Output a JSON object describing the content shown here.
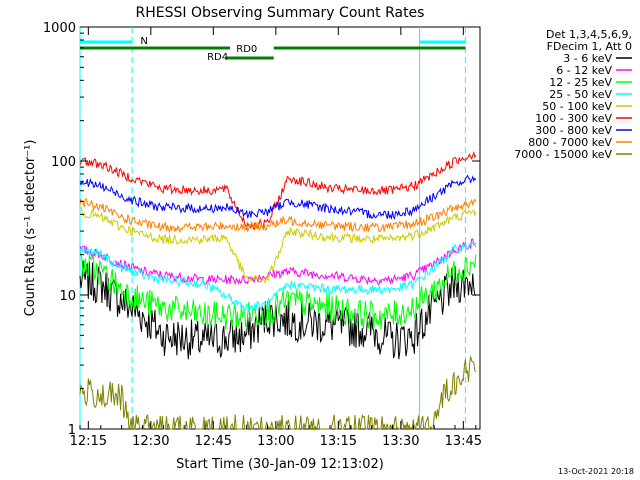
{
  "chart_data": {
    "type": "line",
    "title": "RHESSI Observing Summary Count Rates",
    "xlabel": "Start Time (30-Jan-09 12:13:02)",
    "ylabel": "Count Rate (s⁻¹ detector⁻¹)",
    "yscale": "log",
    "ylim": [
      1,
      1000
    ],
    "xlim_minutes": [
      0,
      96
    ],
    "x_tick_labels": [
      "12:15",
      "12:30",
      "12:45",
      "13:00",
      "13:15",
      "13:30",
      "13:45"
    ],
    "x_tick_minutes": [
      2,
      17,
      32,
      47,
      62,
      77,
      92
    ],
    "y_tick_labels": [
      "1",
      "10",
      "100",
      "1000"
    ],
    "y_tick_values": [
      1,
      10,
      100,
      1000
    ],
    "legend_header": [
      "Det 1,3,4,5,6,9,",
      "FDecim 1, Att 0"
    ],
    "legend_position": "right",
    "series": [
      {
        "name": "3 - 6 keV",
        "color": "#000000",
        "x": [
          0,
          5,
          10,
          15,
          20,
          30,
          40,
          45,
          50,
          60,
          70,
          75,
          80,
          85,
          90,
          95
        ],
        "y": [
          13,
          12,
          9,
          7,
          5,
          4.5,
          5,
          7,
          6.5,
          6,
          5.5,
          4.5,
          5,
          8,
          12,
          13
        ]
      },
      {
        "name": "6 - 12 keV",
        "color": "#ff00ff",
        "x": [
          0,
          5,
          10,
          15,
          20,
          30,
          40,
          45,
          50,
          60,
          70,
          75,
          80,
          85,
          90,
          95
        ],
        "y": [
          22,
          20,
          17,
          15,
          14,
          13,
          13,
          14,
          15,
          14,
          13,
          13,
          14,
          17,
          22,
          25
        ]
      },
      {
        "name": "12 - 25 keV",
        "color": "#00ff00",
        "x": [
          0,
          5,
          10,
          15,
          20,
          30,
          40,
          45,
          50,
          60,
          70,
          75,
          80,
          85,
          90,
          95
        ],
        "y": [
          17,
          15,
          11,
          9,
          8,
          7,
          7,
          7.5,
          9,
          8,
          7,
          7,
          8,
          11,
          15,
          18
        ]
      },
      {
        "name": "25 - 50 keV",
        "color": "#00ffff",
        "x": [
          0,
          5,
          10,
          15,
          20,
          30,
          40,
          45,
          50,
          60,
          70,
          75,
          80,
          85,
          90,
          95
        ],
        "y": [
          22,
          20,
          16,
          14,
          13,
          12,
          8,
          8.5,
          12,
          11,
          11,
          11,
          12,
          16,
          22,
          24
        ]
      },
      {
        "name": "50 - 100 keV",
        "color": "#cccc00",
        "x": [
          0,
          5,
          10,
          15,
          20,
          30,
          35,
          40,
          45,
          50,
          60,
          70,
          75,
          80,
          85,
          90,
          95
        ],
        "y": [
          42,
          38,
          32,
          28,
          26,
          26,
          27,
          13,
          13,
          30,
          27,
          26,
          26,
          28,
          32,
          38,
          42
        ]
      },
      {
        "name": "100 - 300 keV",
        "color": "#ff0000",
        "x": [
          0,
          5,
          10,
          15,
          20,
          30,
          35,
          40,
          45,
          50,
          60,
          70,
          75,
          80,
          85,
          90,
          95
        ],
        "y": [
          100,
          95,
          80,
          70,
          62,
          60,
          62,
          33,
          34,
          75,
          62,
          60,
          60,
          65,
          80,
          100,
          115
        ]
      },
      {
        "name": "300 - 800 keV",
        "color": "#0000ff",
        "x": [
          0,
          5,
          10,
          15,
          20,
          30,
          35,
          40,
          45,
          50,
          60,
          70,
          75,
          80,
          85,
          90,
          95
        ],
        "y": [
          70,
          65,
          55,
          48,
          45,
          44,
          45,
          40,
          42,
          50,
          44,
          40,
          40,
          43,
          55,
          68,
          75
        ]
      },
      {
        "name": "800 - 7000 keV",
        "color": "#ff8000",
        "x": [
          0,
          5,
          10,
          15,
          20,
          30,
          35,
          40,
          45,
          50,
          60,
          70,
          75,
          80,
          85,
          90,
          95
        ],
        "y": [
          50,
          45,
          38,
          34,
          32,
          32,
          33,
          32,
          33,
          36,
          33,
          32,
          32,
          34,
          38,
          45,
          50
        ]
      },
      {
        "name": "7000 - 15000 keV",
        "color": "#808000",
        "x": [
          0,
          5,
          10,
          12,
          13,
          20,
          30,
          40,
          50,
          60,
          70,
          80,
          85,
          87,
          90,
          95
        ],
        "y": [
          1.9,
          1.8,
          1.7,
          1,
          1,
          1,
          1,
          1,
          1,
          1,
          1,
          1,
          1,
          1.8,
          2.3,
          3
        ]
      }
    ],
    "annotations": [
      {
        "label": "N",
        "color": "#00ffff"
      },
      {
        "label": "RD0",
        "color": "#008000"
      },
      {
        "label": "RD4",
        "color": "#008000"
      }
    ]
  },
  "footer": {
    "timestamp": "13-Oct-2021 20:18"
  }
}
